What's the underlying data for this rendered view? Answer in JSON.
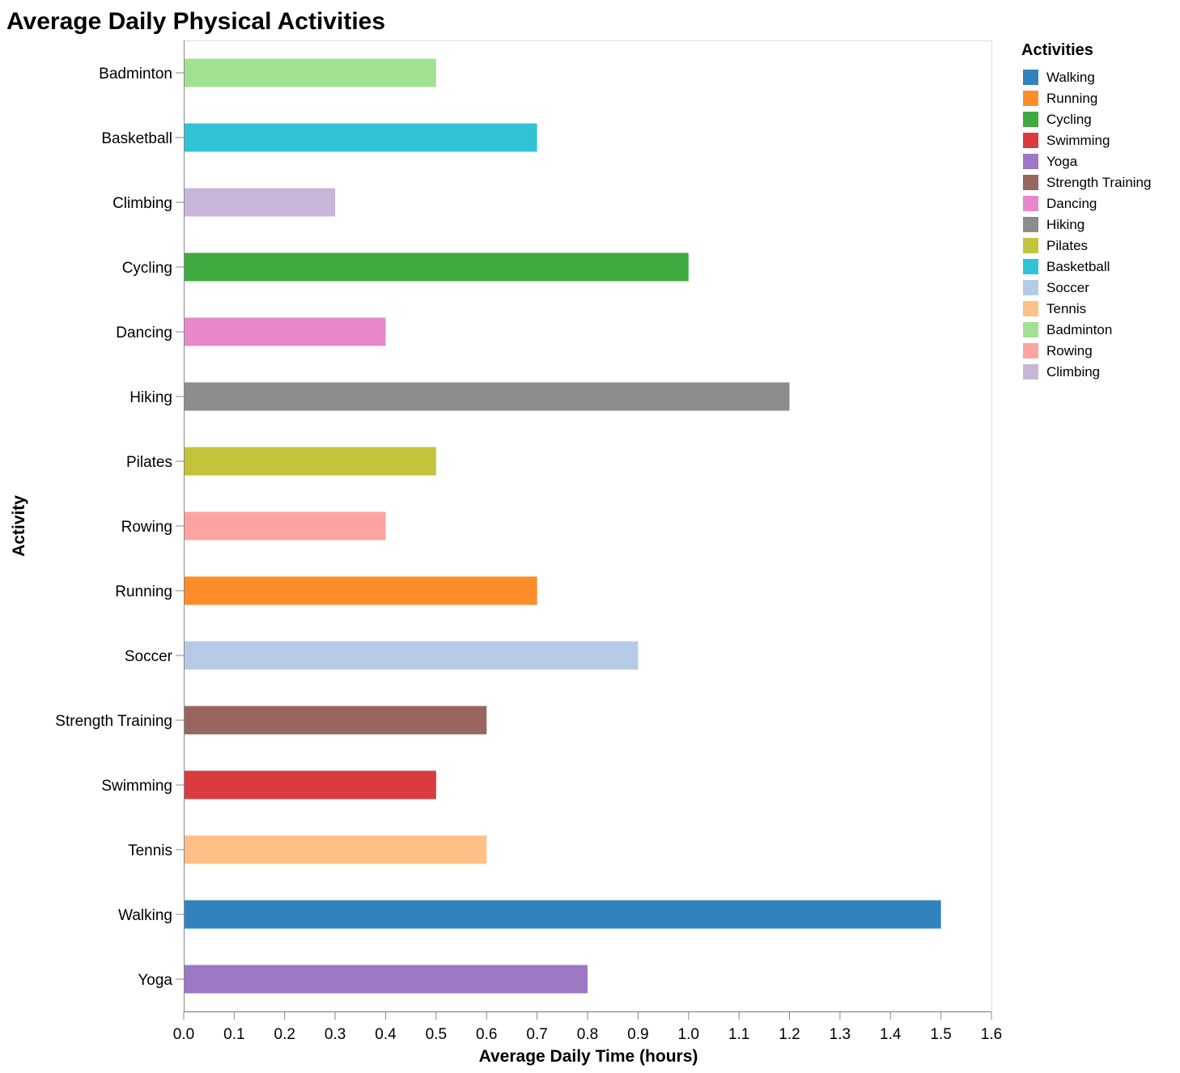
{
  "chart_data": {
    "type": "bar",
    "orientation": "horizontal",
    "title": "Average Daily Physical Activities",
    "xlabel": "Average Daily Time (hours)",
    "ylabel": "Activity",
    "xlim": [
      0,
      1.6
    ],
    "x_ticks": [
      "0.0",
      "0.1",
      "0.2",
      "0.3",
      "0.4",
      "0.5",
      "0.6",
      "0.7",
      "0.8",
      "0.9",
      "1.0",
      "1.1",
      "1.2",
      "1.3",
      "1.4",
      "1.5",
      "1.6"
    ],
    "grid": false,
    "legend_title": "Activities",
    "legend_position": "right",
    "categories": [
      "Badminton",
      "Basketball",
      "Climbing",
      "Cycling",
      "Dancing",
      "Hiking",
      "Pilates",
      "Rowing",
      "Running",
      "Soccer",
      "Strength Training",
      "Swimming",
      "Tennis",
      "Walking",
      "Yoga"
    ],
    "values": [
      0.5,
      0.7,
      0.3,
      1.0,
      0.4,
      1.2,
      0.5,
      0.4,
      0.7,
      0.9,
      0.6,
      0.5,
      0.6,
      1.5,
      0.8
    ],
    "legend": [
      {
        "label": "Walking",
        "color": "#3182bd"
      },
      {
        "label": "Running",
        "color": "#ff8c2a"
      },
      {
        "label": "Cycling",
        "color": "#40aa40"
      },
      {
        "label": "Swimming",
        "color": "#d93b3f"
      },
      {
        "label": "Yoga",
        "color": "#9c78c4"
      },
      {
        "label": "Strength Training",
        "color": "#98665c"
      },
      {
        "label": "Dancing",
        "color": "#e688c9"
      },
      {
        "label": "Hiking",
        "color": "#8c8c8c"
      },
      {
        "label": "Pilates",
        "color": "#c2c33a"
      },
      {
        "label": "Basketball",
        "color": "#30c3d3"
      },
      {
        "label": "Soccer",
        "color": "#b4cbe8"
      },
      {
        "label": "Tennis",
        "color": "#ffc086"
      },
      {
        "label": "Badminton",
        "color": "#a2e192"
      },
      {
        "label": "Rowing",
        "color": "#ffa3a1"
      },
      {
        "label": "Climbing",
        "color": "#c9b5d8"
      }
    ]
  }
}
